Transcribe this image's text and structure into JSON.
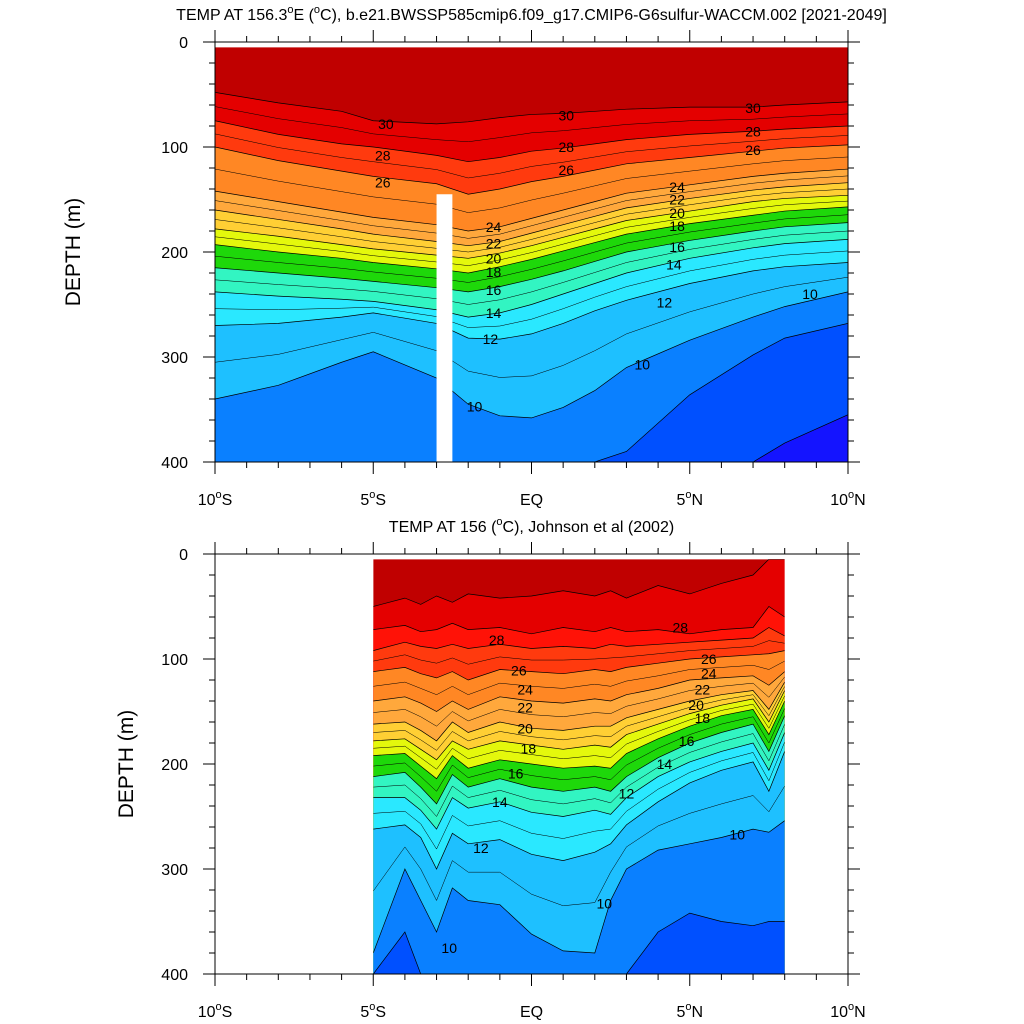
{
  "chart_data": [
    {
      "type": "contour",
      "title": "TEMP AT 156.3°E (°C), b.e21.BWSSP585cmip6.f09_g17.CMIP6-G6sulfur-WACCM.002 [2021-2049]",
      "title_parts": {
        "pre": "TEMP AT 156.3",
        "sup1": "o",
        "mid": "E (",
        "sup2": "o",
        "post": "C), b.e21.BWSSP585cmip6.f09_g17.CMIP6-G6sulfur-WACCM.002 [2021-2049]"
      },
      "ylabel": "DEPTH (m)",
      "x_ticks": [
        {
          "value": -10,
          "main": "10",
          "sup": "o",
          "hemi": "S"
        },
        {
          "value": -5,
          "main": "5",
          "sup": "o",
          "hemi": "S"
        },
        {
          "value": 0,
          "main": "EQ",
          "sup": "",
          "hemi": ""
        },
        {
          "value": 5,
          "main": "5",
          "sup": "o",
          "hemi": "N"
        },
        {
          "value": 10,
          "main": "10",
          "sup": "o",
          "hemi": "N"
        }
      ],
      "y_ticks": [
        0,
        100,
        200,
        300,
        400
      ],
      "xlim": [
        -10,
        10
      ],
      "ylim": [
        0,
        400
      ],
      "data_xrange": [
        -10,
        10
      ],
      "data_top_depth": 5,
      "missing_column": {
        "x_from": -3.0,
        "x_to": -2.5,
        "depth_from": 145,
        "depth_to": 400
      },
      "x_nodes": [
        -10,
        -8,
        -6,
        -5,
        -3,
        -2,
        -1,
        0,
        1,
        2,
        3,
        5,
        7,
        8,
        10
      ],
      "isotherms": [
        {
          "level": 30,
          "depth": [
            48,
            58,
            66,
            75,
            78,
            76,
            72,
            69,
            68,
            66,
            64,
            62,
            62,
            60,
            57
          ]
        },
        {
          "level": 28,
          "depth": [
            75,
            88,
            97,
            100,
            108,
            114,
            110,
            104,
            101,
            97,
            93,
            88,
            85,
            83,
            80
          ]
        },
        {
          "level": 26,
          "depth": [
            100,
            113,
            123,
            128,
            135,
            145,
            140,
            133,
            128,
            122,
            116,
            110,
            104,
            101,
            98
          ]
        },
        {
          "level": 24,
          "depth": [
            142,
            152,
            162,
            167,
            174,
            180,
            176,
            168,
            160,
            152,
            144,
            136,
            128,
            125,
            121
          ]
        },
        {
          "level": 22,
          "depth": [
            160,
            169,
            178,
            183,
            190,
            194,
            190,
            182,
            174,
            166,
            158,
            149,
            141,
            138,
            134
          ]
        },
        {
          "level": 20,
          "depth": [
            178,
            185,
            193,
            197,
            203,
            206,
            201,
            194,
            186,
            178,
            170,
            161,
            152,
            149,
            146
          ]
        },
        {
          "level": 18,
          "depth": [
            193,
            200,
            206,
            210,
            216,
            220,
            214,
            207,
            199,
            191,
            183,
            173,
            165,
            161,
            157
          ]
        },
        {
          "level": 16,
          "depth": [
            215,
            220,
            225,
            228,
            234,
            238,
            233,
            226,
            218,
            209,
            200,
            189,
            180,
            176,
            172
          ]
        },
        {
          "level": 14,
          "depth": [
            238,
            242,
            245,
            247,
            255,
            262,
            258,
            250,
            240,
            230,
            220,
            206,
            196,
            192,
            188
          ]
        },
        {
          "level": 12,
          "depth": [
            270,
            268,
            262,
            258,
            268,
            282,
            283,
            278,
            268,
            256,
            246,
            230,
            218,
            214,
            210
          ]
        },
        {
          "level": 10,
          "depth": [
            340,
            327,
            305,
            295,
            320,
            345,
            356,
            358,
            348,
            332,
            310,
            284,
            262,
            252,
            238
          ]
        },
        {
          "level": 9,
          "depth": [
            400,
            400,
            400,
            400,
            400,
            400,
            400,
            400,
            400,
            400,
            390,
            336,
            298,
            282,
            268
          ]
        },
        {
          "level": 8,
          "depth": [
            400,
            400,
            400,
            400,
            400,
            400,
            400,
            400,
            400,
            400,
            400,
            400,
            400,
            382,
            355
          ]
        }
      ],
      "contour_labels": [
        {
          "text": "30",
          "x": -4.6,
          "y": 78
        },
        {
          "text": "30",
          "x": 1.1,
          "y": 70
        },
        {
          "text": "30",
          "x": 7.0,
          "y": 63
        },
        {
          "text": "28",
          "x": -4.7,
          "y": 108
        },
        {
          "text": "28",
          "x": 1.1,
          "y": 100
        },
        {
          "text": "28",
          "x": 7.0,
          "y": 85
        },
        {
          "text": "26",
          "x": -4.7,
          "y": 134
        },
        {
          "text": "26",
          "x": 1.1,
          "y": 122
        },
        {
          "text": "26",
          "x": 7.0,
          "y": 103
        },
        {
          "text": "24",
          "x": -1.2,
          "y": 176
        },
        {
          "text": "24",
          "x": 4.6,
          "y": 138
        },
        {
          "text": "22",
          "x": -1.2,
          "y": 192
        },
        {
          "text": "22",
          "x": 4.6,
          "y": 150
        },
        {
          "text": "20",
          "x": -1.2,
          "y": 206
        },
        {
          "text": "20",
          "x": 4.6,
          "y": 163
        },
        {
          "text": "18",
          "x": -1.2,
          "y": 219
        },
        {
          "text": "18",
          "x": 4.6,
          "y": 175
        },
        {
          "text": "16",
          "x": -1.2,
          "y": 236
        },
        {
          "text": "16",
          "x": 4.6,
          "y": 195
        },
        {
          "text": "14",
          "x": -1.2,
          "y": 258
        },
        {
          "text": "14",
          "x": 4.5,
          "y": 212
        },
        {
          "text": "12",
          "x": -1.3,
          "y": 283
        },
        {
          "text": "12",
          "x": 4.2,
          "y": 248
        },
        {
          "text": "10",
          "x": 8.8,
          "y": 240
        },
        {
          "text": "10",
          "x": -1.8,
          "y": 347
        },
        {
          "text": "10",
          "x": 3.5,
          "y": 307
        }
      ]
    },
    {
      "type": "contour",
      "title": "TEMP AT 156 (°C), Johnson et al (2002)",
      "title_parts": {
        "pre": "TEMP AT 156 (",
        "sup1": "o",
        "mid": "C), Johnson et al (2002)",
        "sup2": "",
        "post": ""
      },
      "ylabel": "DEPTH (m)",
      "x_ticks": [
        {
          "value": -10,
          "main": "10",
          "sup": "o",
          "hemi": "S"
        },
        {
          "value": -5,
          "main": "5",
          "sup": "o",
          "hemi": "S"
        },
        {
          "value": 0,
          "main": "EQ",
          "sup": "",
          "hemi": ""
        },
        {
          "value": 5,
          "main": "5",
          "sup": "o",
          "hemi": "N"
        },
        {
          "value": 10,
          "main": "10",
          "sup": "o",
          "hemi": "N"
        }
      ],
      "y_ticks": [
        0,
        100,
        200,
        300,
        400
      ],
      "xlim": [
        -10,
        10
      ],
      "ylim": [
        0,
        400
      ],
      "data_xrange": [
        -5,
        8
      ],
      "data_top_depth": 5,
      "missing_column": null,
      "x_nodes": [
        -5,
        -4,
        -3.5,
        -3,
        -2.5,
        -2,
        -1,
        0,
        1,
        2,
        2.5,
        3,
        4,
        5,
        6,
        7,
        7.5,
        8
      ],
      "isotherms": [
        {
          "level": 30,
          "depth": [
            50,
            42,
            48,
            40,
            46,
            38,
            42,
            40,
            35,
            40,
            35,
            42,
            30,
            38,
            28,
            20,
            5,
            5
          ]
        },
        {
          "level": 29,
          "depth": [
            72,
            68,
            74,
            72,
            66,
            72,
            70,
            76,
            70,
            74,
            70,
            74,
            72,
            76,
            72,
            70,
            50,
            60
          ]
        },
        {
          "level": 28,
          "depth": [
            92,
            84,
            88,
            90,
            86,
            90,
            86,
            90,
            88,
            90,
            86,
            88,
            86,
            84,
            82,
            80,
            70,
            78
          ]
        },
        {
          "level": 26,
          "depth": [
            112,
            108,
            114,
            118,
            112,
            120,
            110,
            112,
            114,
            110,
            112,
            108,
            104,
            100,
            98,
            96,
            95,
            92
          ]
        },
        {
          "level": 24,
          "depth": [
            140,
            136,
            142,
            150,
            140,
            148,
            136,
            140,
            142,
            138,
            140,
            134,
            128,
            120,
            118,
            116,
            125,
            112
          ]
        },
        {
          "level": 22,
          "depth": [
            162,
            160,
            168,
            178,
            160,
            170,
            160,
            166,
            168,
            164,
            164,
            156,
            148,
            140,
            134,
            130,
            148,
            122
          ]
        },
        {
          "level": 20,
          "depth": [
            178,
            176,
            186,
            196,
            178,
            186,
            178,
            182,
            186,
            182,
            184,
            172,
            162,
            152,
            144,
            138,
            160,
            130
          ]
        },
        {
          "level": 18,
          "depth": [
            192,
            190,
            202,
            214,
            192,
            204,
            196,
            200,
            204,
            202,
            204,
            190,
            176,
            164,
            154,
            148,
            172,
            140
          ]
        },
        {
          "level": 16,
          "depth": [
            212,
            208,
            222,
            238,
            210,
            222,
            214,
            222,
            226,
            222,
            226,
            212,
            194,
            180,
            170,
            162,
            188,
            154
          ]
        },
        {
          "level": 14,
          "depth": [
            232,
            232,
            244,
            262,
            232,
            242,
            236,
            246,
            250,
            244,
            248,
            232,
            212,
            198,
            188,
            180,
            206,
            170
          ]
        },
        {
          "level": 12,
          "depth": [
            262,
            258,
            270,
            300,
            266,
            276,
            272,
            286,
            292,
            284,
            276,
            258,
            236,
            218,
            206,
            198,
            226,
            188
          ]
        },
        {
          "level": 10,
          "depth": [
            380,
            300,
            330,
            360,
            318,
            330,
            334,
            362,
            378,
            380,
            330,
            300,
            282,
            276,
            270,
            262,
            265,
            254
          ]
        },
        {
          "level": 9,
          "depth": [
            400,
            360,
            400,
            400,
            400,
            400,
            400,
            400,
            400,
            400,
            400,
            400,
            360,
            342,
            350,
            354,
            350,
            350
          ]
        }
      ],
      "contour_labels": [
        {
          "text": "28",
          "x": -1.1,
          "y": 82
        },
        {
          "text": "28",
          "x": 4.7,
          "y": 70
        },
        {
          "text": "26",
          "x": -0.4,
          "y": 111
        },
        {
          "text": "26",
          "x": 5.6,
          "y": 100
        },
        {
          "text": "24",
          "x": -0.2,
          "y": 129
        },
        {
          "text": "24",
          "x": 5.6,
          "y": 114
        },
        {
          "text": "22",
          "x": -0.2,
          "y": 146
        },
        {
          "text": "22",
          "x": 5.4,
          "y": 129
        },
        {
          "text": "20",
          "x": -0.2,
          "y": 166
        },
        {
          "text": "20",
          "x": 5.2,
          "y": 144
        },
        {
          "text": "18",
          "x": -0.1,
          "y": 185
        },
        {
          "text": "18",
          "x": 5.4,
          "y": 156
        },
        {
          "text": "16",
          "x": -0.5,
          "y": 209
        },
        {
          "text": "16",
          "x": 4.9,
          "y": 178
        },
        {
          "text": "14",
          "x": -1.0,
          "y": 236
        },
        {
          "text": "14",
          "x": 4.2,
          "y": 200
        },
        {
          "text": "12",
          "x": 3.0,
          "y": 228
        },
        {
          "text": "12",
          "x": -1.6,
          "y": 280
        },
        {
          "text": "10",
          "x": 6.5,
          "y": 267
        },
        {
          "text": "10",
          "x": 2.3,
          "y": 333
        },
        {
          "text": "10",
          "x": -2.6,
          "y": 375
        }
      ]
    }
  ],
  "palette": [
    {
      "level": 0,
      "color": "#6a00ff"
    },
    {
      "level": 8,
      "color": "#1414ff"
    },
    {
      "level": 9,
      "color": "#0050ff"
    },
    {
      "level": 10,
      "color": "#0a80ff"
    },
    {
      "level": 11,
      "color": "#1aa0ff"
    },
    {
      "level": 12,
      "color": "#1ec0ff"
    },
    {
      "level": 13,
      "color": "#1fd8ff"
    },
    {
      "level": 14,
      "color": "#2ae8ff"
    },
    {
      "level": 15,
      "color": "#2cf5ec"
    },
    {
      "level": 16,
      "color": "#32f5c2"
    },
    {
      "level": 17,
      "color": "#1ef39a"
    },
    {
      "level": 18,
      "color": "#1ed80a"
    },
    {
      "level": 19,
      "color": "#9ff30c"
    },
    {
      "level": 20,
      "color": "#e4f80c"
    },
    {
      "level": 21,
      "color": "#ffe31e"
    },
    {
      "level": 22,
      "color": "#ffcf34"
    },
    {
      "level": 23,
      "color": "#ffb940"
    },
    {
      "level": 24,
      "color": "#ffa83c"
    },
    {
      "level": 25,
      "color": "#ff9830"
    },
    {
      "level": 26,
      "color": "#ff8724"
    },
    {
      "level": 27,
      "color": "#ff6418"
    },
    {
      "level": 28,
      "color": "#ff3a0e"
    },
    {
      "level": 29,
      "color": "#ff1207"
    },
    {
      "level": 30,
      "color": "#e40000"
    },
    {
      "level": 31,
      "color": "#c00000"
    }
  ]
}
